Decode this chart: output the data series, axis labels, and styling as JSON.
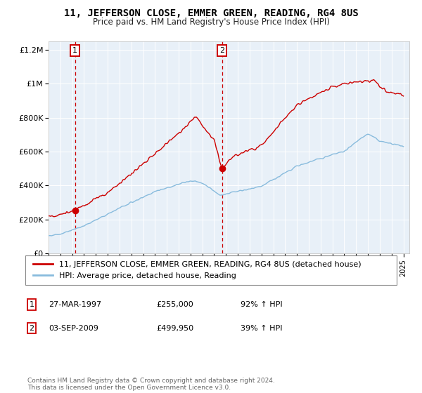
{
  "title": "11, JEFFERSON CLOSE, EMMER GREEN, READING, RG4 8US",
  "subtitle": "Price paid vs. HM Land Registry's House Price Index (HPI)",
  "legend_line1": "11, JEFFERSON CLOSE, EMMER GREEN, READING, RG4 8US (detached house)",
  "legend_line2": "HPI: Average price, detached house, Reading",
  "sale1_date": "27-MAR-1997",
  "sale1_price": "£255,000",
  "sale1_hpi": "92% ↑ HPI",
  "sale1_year": 1997.23,
  "sale1_value": 255000,
  "sale2_date": "03-SEP-2009",
  "sale2_price": "£499,950",
  "sale2_hpi": "39% ↑ HPI",
  "sale2_year": 2009.67,
  "sale2_value": 499950,
  "footnote_line1": "Contains HM Land Registry data © Crown copyright and database right 2024.",
  "footnote_line2": "This data is licensed under the Open Government Licence v3.0.",
  "red_color": "#cc0000",
  "blue_color": "#88bbdd",
  "chart_bg": "#e8f0f8",
  "ylim_max": 1250000,
  "xlim_start": 1995.0,
  "xlim_end": 2025.5,
  "yticks": [
    0,
    200000,
    400000,
    600000,
    800000,
    1000000,
    1200000
  ],
  "ylabels": [
    "£0",
    "£200K",
    "£400K",
    "£600K",
    "£800K",
    "£1M",
    "£1.2M"
  ]
}
